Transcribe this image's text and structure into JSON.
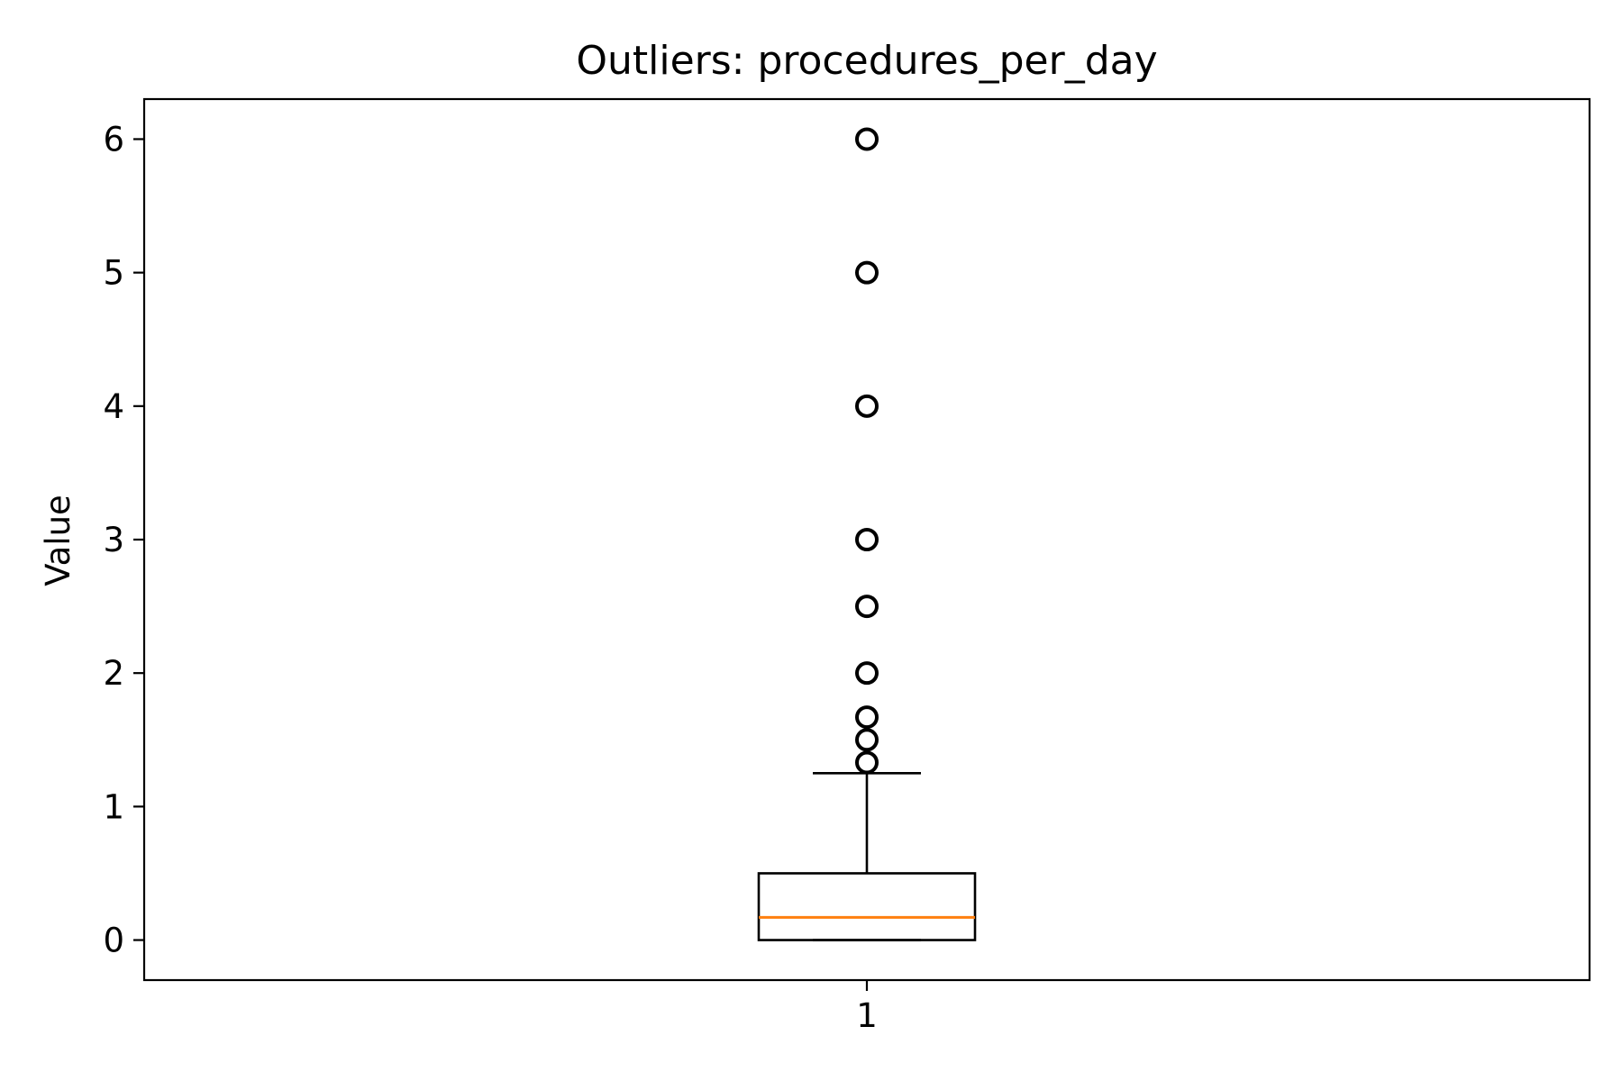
{
  "chart_data": {
    "type": "box",
    "title": "Outliers: procedures_per_day",
    "xlabel": "",
    "ylabel": "Value",
    "ylim": [
      -0.3,
      6.3
    ],
    "yticks": [
      0,
      1,
      2,
      3,
      4,
      5,
      6
    ],
    "ytick_labels": [
      "0",
      "1",
      "2",
      "3",
      "4",
      "5",
      "6"
    ],
    "categories": [
      "1"
    ],
    "grid": false,
    "legend": "none",
    "boxes": [
      {
        "category": "1",
        "q1": 0,
        "median": 0.17,
        "q3": 0.5,
        "whisker_low": 0,
        "whisker_high": 1.25,
        "outliers": [
          1.33,
          1.5,
          1.67,
          2,
          2.5,
          3,
          4,
          5,
          6
        ]
      }
    ],
    "colors": {
      "box": "#000000",
      "median": "#ff7f0e",
      "outlier": "#000000"
    }
  }
}
